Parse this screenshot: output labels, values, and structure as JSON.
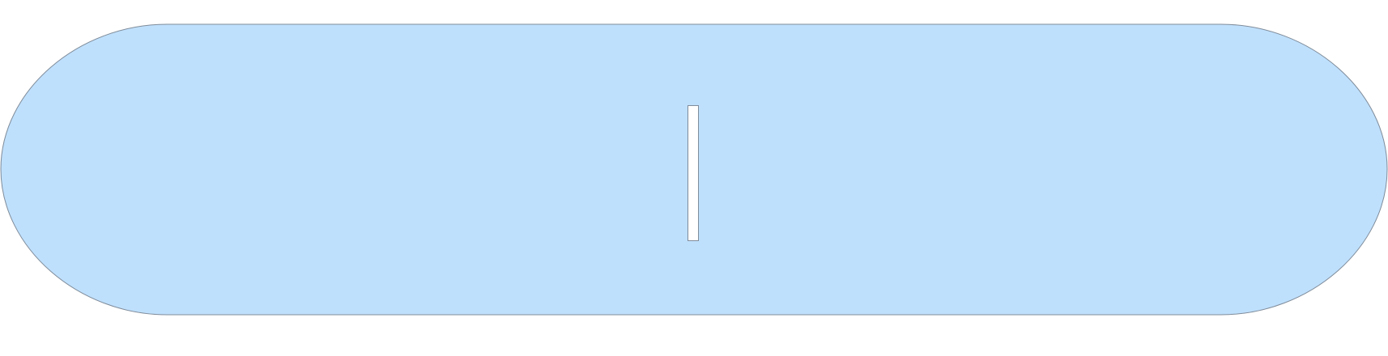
{
  "diagram": {
    "shapes": [
      {
        "type": "terminator",
        "fill": "#bfe0fd",
        "stroke": "#7f8c9a"
      },
      {
        "type": "text-cursor-box",
        "fill": "#ffffff",
        "stroke": "#7f8c9a"
      }
    ]
  }
}
